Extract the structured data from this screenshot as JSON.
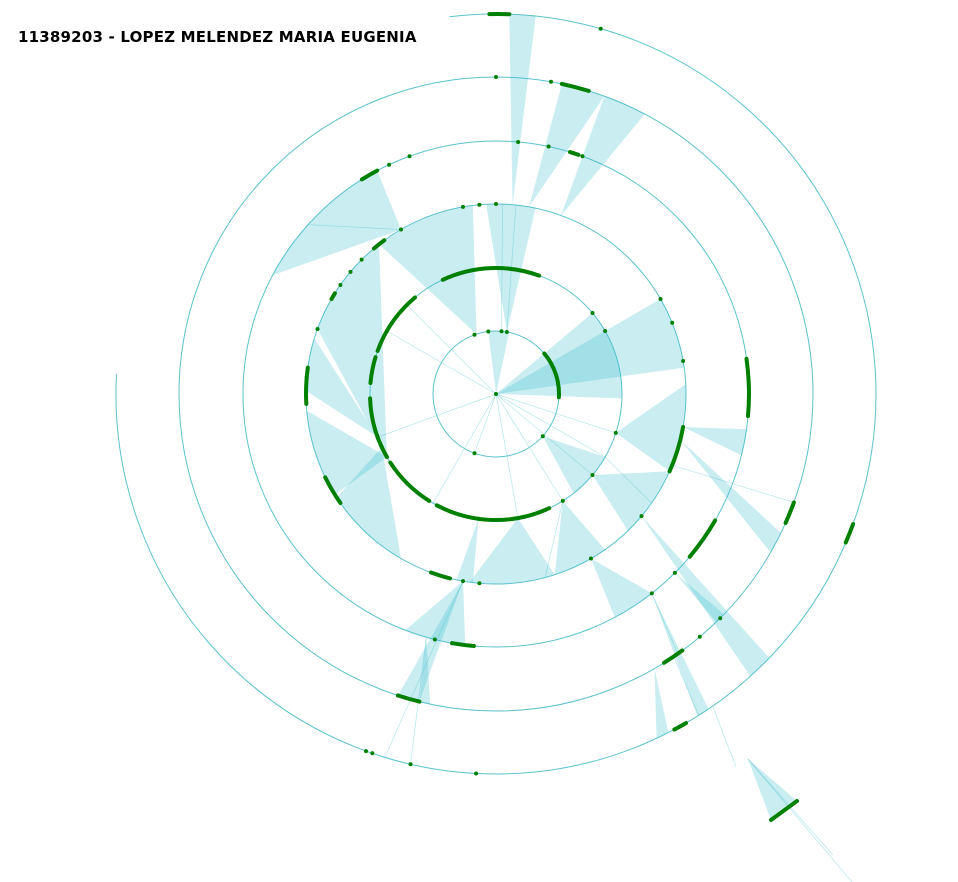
{
  "header": {
    "title": "11389203 - LOPEZ MELENDEZ MARIA EUGENIA"
  },
  "colors": {
    "ring": "#5bc2cc",
    "edge": "#5bc8d2",
    "node": "#008000",
    "background": "#ffffff"
  }
}
